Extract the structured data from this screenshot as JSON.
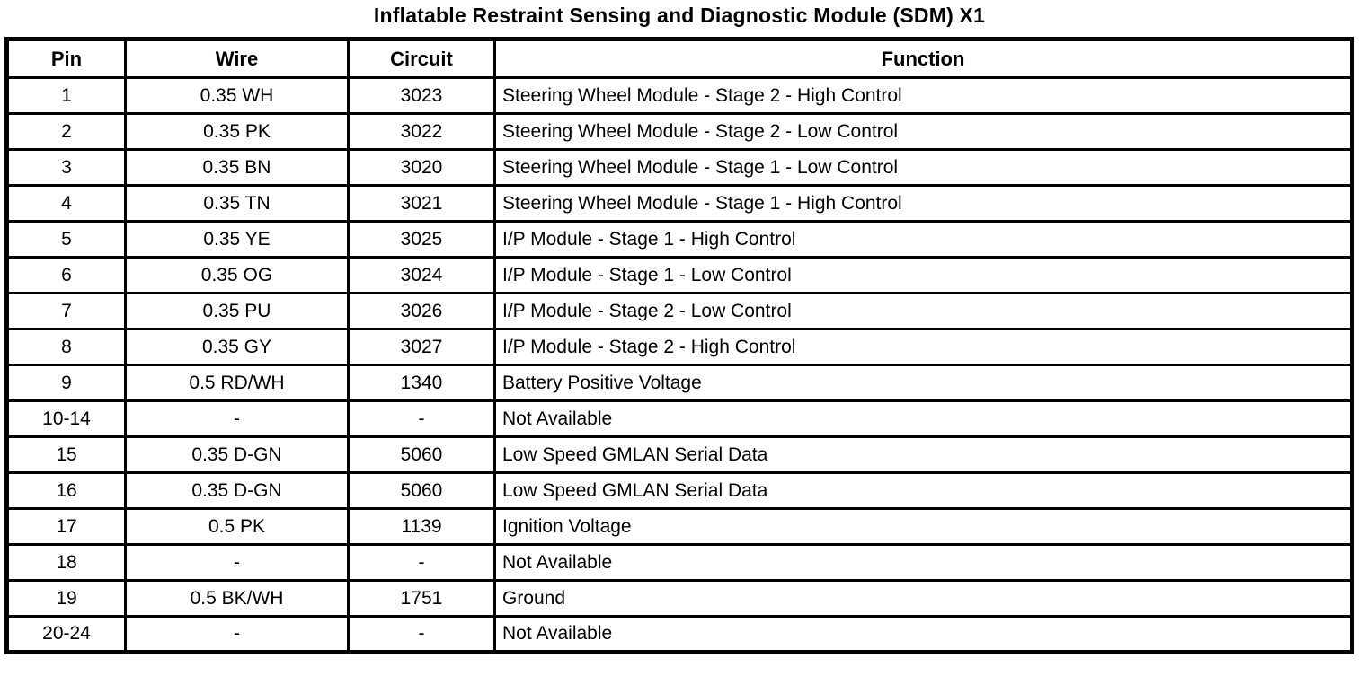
{
  "title": "Inflatable Restraint Sensing and Diagnostic Module (SDM) X1",
  "colors": {
    "border": "#000000",
    "background": "#ffffff",
    "text": "#000000"
  },
  "table": {
    "columns": [
      "Pin",
      "Wire",
      "Circuit",
      "Function"
    ],
    "rows": [
      {
        "pin": "1",
        "wire": "0.35 WH",
        "circuit": "3023",
        "function": "Steering Wheel Module - Stage 2 - High Control"
      },
      {
        "pin": "2",
        "wire": "0.35 PK",
        "circuit": "3022",
        "function": "Steering Wheel Module - Stage 2 - Low Control"
      },
      {
        "pin": "3",
        "wire": "0.35 BN",
        "circuit": "3020",
        "function": "Steering Wheel Module - Stage 1 - Low Control"
      },
      {
        "pin": "4",
        "wire": "0.35 TN",
        "circuit": "3021",
        "function": "Steering Wheel Module - Stage 1 - High Control"
      },
      {
        "pin": "5",
        "wire": "0.35 YE",
        "circuit": "3025",
        "function": "I/P Module - Stage 1 - High Control"
      },
      {
        "pin": "6",
        "wire": "0.35 OG",
        "circuit": "3024",
        "function": "I/P Module - Stage 1 - Low Control"
      },
      {
        "pin": "7",
        "wire": "0.35 PU",
        "circuit": "3026",
        "function": "I/P Module - Stage 2 - Low Control"
      },
      {
        "pin": "8",
        "wire": "0.35 GY",
        "circuit": "3027",
        "function": "I/P Module - Stage 2 - High Control"
      },
      {
        "pin": "9",
        "wire": "0.5 RD/WH",
        "circuit": "1340",
        "function": "Battery Positive Voltage"
      },
      {
        "pin": "10-14",
        "wire": "-",
        "circuit": "-",
        "function": "Not Available"
      },
      {
        "pin": "15",
        "wire": "0.35 D-GN",
        "circuit": "5060",
        "function": "Low Speed GMLAN Serial Data"
      },
      {
        "pin": "16",
        "wire": "0.35 D-GN",
        "circuit": "5060",
        "function": "Low Speed GMLAN Serial Data"
      },
      {
        "pin": "17",
        "wire": "0.5 PK",
        "circuit": "1139",
        "function": "Ignition Voltage"
      },
      {
        "pin": "18",
        "wire": "-",
        "circuit": "-",
        "function": "Not Available"
      },
      {
        "pin": "19",
        "wire": "0.5 BK/WH",
        "circuit": "1751",
        "function": "Ground"
      },
      {
        "pin": "20-24",
        "wire": "-",
        "circuit": "-",
        "function": "Not Available"
      }
    ]
  }
}
